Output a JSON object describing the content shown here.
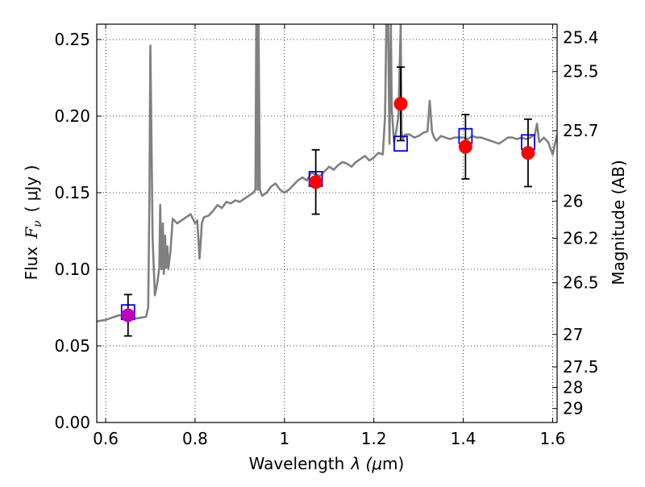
{
  "chart_data": {
    "type": "line",
    "title": "",
    "xlabel": "Wavelength",
    "xlabel_symbol": "λ (",
    "xlabel_unit_symbol": "μ",
    "xlabel_unit": "m)",
    "ylabel": "Flux",
    "ylabel_symbol": "F",
    "ylabel_subscript": "ν",
    "ylabel_unit": "( μJy )",
    "y2label": "Magnitude (AB)",
    "xlim": [
      0.58,
      1.61
    ],
    "ylim": [
      0.0,
      0.26
    ],
    "grid": true,
    "x_ticks": [
      {
        "value": 0.6,
        "label": "0.6"
      },
      {
        "value": 0.8,
        "label": "0.8"
      },
      {
        "value": 1.0,
        "label": "1"
      },
      {
        "value": 1.2,
        "label": "1.2"
      },
      {
        "value": 1.4,
        "label": "1.4"
      },
      {
        "value": 1.6,
        "label": "1.6"
      }
    ],
    "y_ticks": [
      {
        "value": 0.0,
        "label": "0.00"
      },
      {
        "value": 0.05,
        "label": "0.05"
      },
      {
        "value": 0.1,
        "label": "0.10"
      },
      {
        "value": 0.15,
        "label": "0.15"
      },
      {
        "value": 0.2,
        "label": "0.20"
      },
      {
        "value": 0.25,
        "label": "0.25"
      }
    ],
    "mag_ticks": [
      {
        "label": "25.4",
        "flux": 0.2512
      },
      {
        "label": "25.5",
        "flux": 0.2291
      },
      {
        "label": "25.7",
        "flux": 0.1905
      },
      {
        "label": "26",
        "flux": 0.1445
      },
      {
        "label": "26.2",
        "flux": 0.1202
      },
      {
        "label": "26.5",
        "flux": 0.0912
      },
      {
        "label": "27",
        "flux": 0.0575
      },
      {
        "label": "27.5",
        "flux": 0.0363
      },
      {
        "label": "28",
        "flux": 0.0229
      },
      {
        "label": "29",
        "flux": 0.0091
      }
    ],
    "series": [
      {
        "name": "model SED",
        "kind": "line",
        "color": "#808080",
        "x": [
          0.58,
          0.6,
          0.62,
          0.63,
          0.65,
          0.67,
          0.69,
          0.695,
          0.698,
          0.7,
          0.705,
          0.71,
          0.715,
          0.72,
          0.722,
          0.725,
          0.728,
          0.73,
          0.733,
          0.735,
          0.738,
          0.74,
          0.745,
          0.75,
          0.76,
          0.77,
          0.78,
          0.79,
          0.8,
          0.805,
          0.81,
          0.813,
          0.815,
          0.82,
          0.83,
          0.84,
          0.85,
          0.86,
          0.87,
          0.88,
          0.89,
          0.9,
          0.91,
          0.92,
          0.93,
          0.935,
          0.937,
          0.938,
          0.94,
          0.942,
          0.945,
          0.95,
          0.96,
          0.97,
          0.98,
          0.99,
          1.0,
          1.01,
          1.02,
          1.03,
          1.04,
          1.05,
          1.06,
          1.07,
          1.08,
          1.09,
          1.1,
          1.11,
          1.12,
          1.13,
          1.14,
          1.15,
          1.16,
          1.17,
          1.18,
          1.19,
          1.2,
          1.21,
          1.22,
          1.225,
          1.228,
          1.232,
          1.235,
          1.238,
          1.24,
          1.245,
          1.25,
          1.255,
          1.26,
          1.262,
          1.265,
          1.27,
          1.28,
          1.29,
          1.3,
          1.31,
          1.32,
          1.325,
          1.33,
          1.335,
          1.34,
          1.35,
          1.36,
          1.37,
          1.38,
          1.39,
          1.4,
          1.41,
          1.42,
          1.43,
          1.44,
          1.45,
          1.46,
          1.47,
          1.48,
          1.49,
          1.5,
          1.51,
          1.52,
          1.53,
          1.54,
          1.55,
          1.56,
          1.565,
          1.57,
          1.58,
          1.59,
          1.6,
          1.61
        ],
        "y": [
          0.066,
          0.067,
          0.069,
          0.07,
          0.069,
          0.068,
          0.069,
          0.075,
          0.15,
          0.246,
          0.12,
          0.083,
          0.09,
          0.101,
          0.142,
          0.1,
          0.13,
          0.097,
          0.122,
          0.101,
          0.115,
          0.1,
          0.112,
          0.133,
          0.13,
          0.132,
          0.134,
          0.136,
          0.13,
          0.132,
          0.107,
          0.12,
          0.13,
          0.134,
          0.135,
          0.138,
          0.142,
          0.14,
          0.144,
          0.143,
          0.145,
          0.144,
          0.146,
          0.148,
          0.15,
          0.152,
          0.26,
          0.26,
          0.152,
          0.26,
          0.152,
          0.148,
          0.15,
          0.154,
          0.156,
          0.152,
          0.15,
          0.152,
          0.155,
          0.158,
          0.16,
          0.158,
          0.163,
          0.162,
          0.161,
          0.164,
          0.167,
          0.165,
          0.168,
          0.17,
          0.169,
          0.167,
          0.17,
          0.172,
          0.174,
          0.171,
          0.173,
          0.176,
          0.175,
          0.2,
          0.26,
          0.26,
          0.182,
          0.26,
          0.205,
          0.183,
          0.19,
          0.2,
          0.26,
          0.19,
          0.185,
          0.188,
          0.188,
          0.186,
          0.187,
          0.189,
          0.19,
          0.21,
          0.19,
          0.186,
          0.184,
          0.187,
          0.186,
          0.185,
          0.186,
          0.186,
          0.186,
          0.185,
          0.187,
          0.186,
          0.186,
          0.185,
          0.184,
          0.183,
          0.182,
          0.184,
          0.186,
          0.186,
          0.185,
          0.186,
          0.185,
          0.186,
          0.188,
          0.195,
          0.183,
          0.186,
          0.183,
          0.175,
          0.188
        ]
      },
      {
        "name": "model photometry",
        "kind": "open-square",
        "color": "#0000ff",
        "x": [
          0.65,
          1.07,
          1.26,
          1.405,
          1.545
        ],
        "y": [
          0.072,
          0.159,
          0.182,
          0.187,
          0.183
        ]
      },
      {
        "name": "observed",
        "kind": "filled-circle-errorbar",
        "colors": [
          "#bf00bf",
          "#ff0000",
          "#ff0000",
          "#ff0000",
          "#ff0000"
        ],
        "x": [
          0.65,
          1.07,
          1.26,
          1.405,
          1.545
        ],
        "y": [
          0.07,
          0.157,
          0.208,
          0.18,
          0.176
        ],
        "err": [
          0.0135,
          0.021,
          0.024,
          0.021,
          0.022
        ]
      }
    ]
  }
}
